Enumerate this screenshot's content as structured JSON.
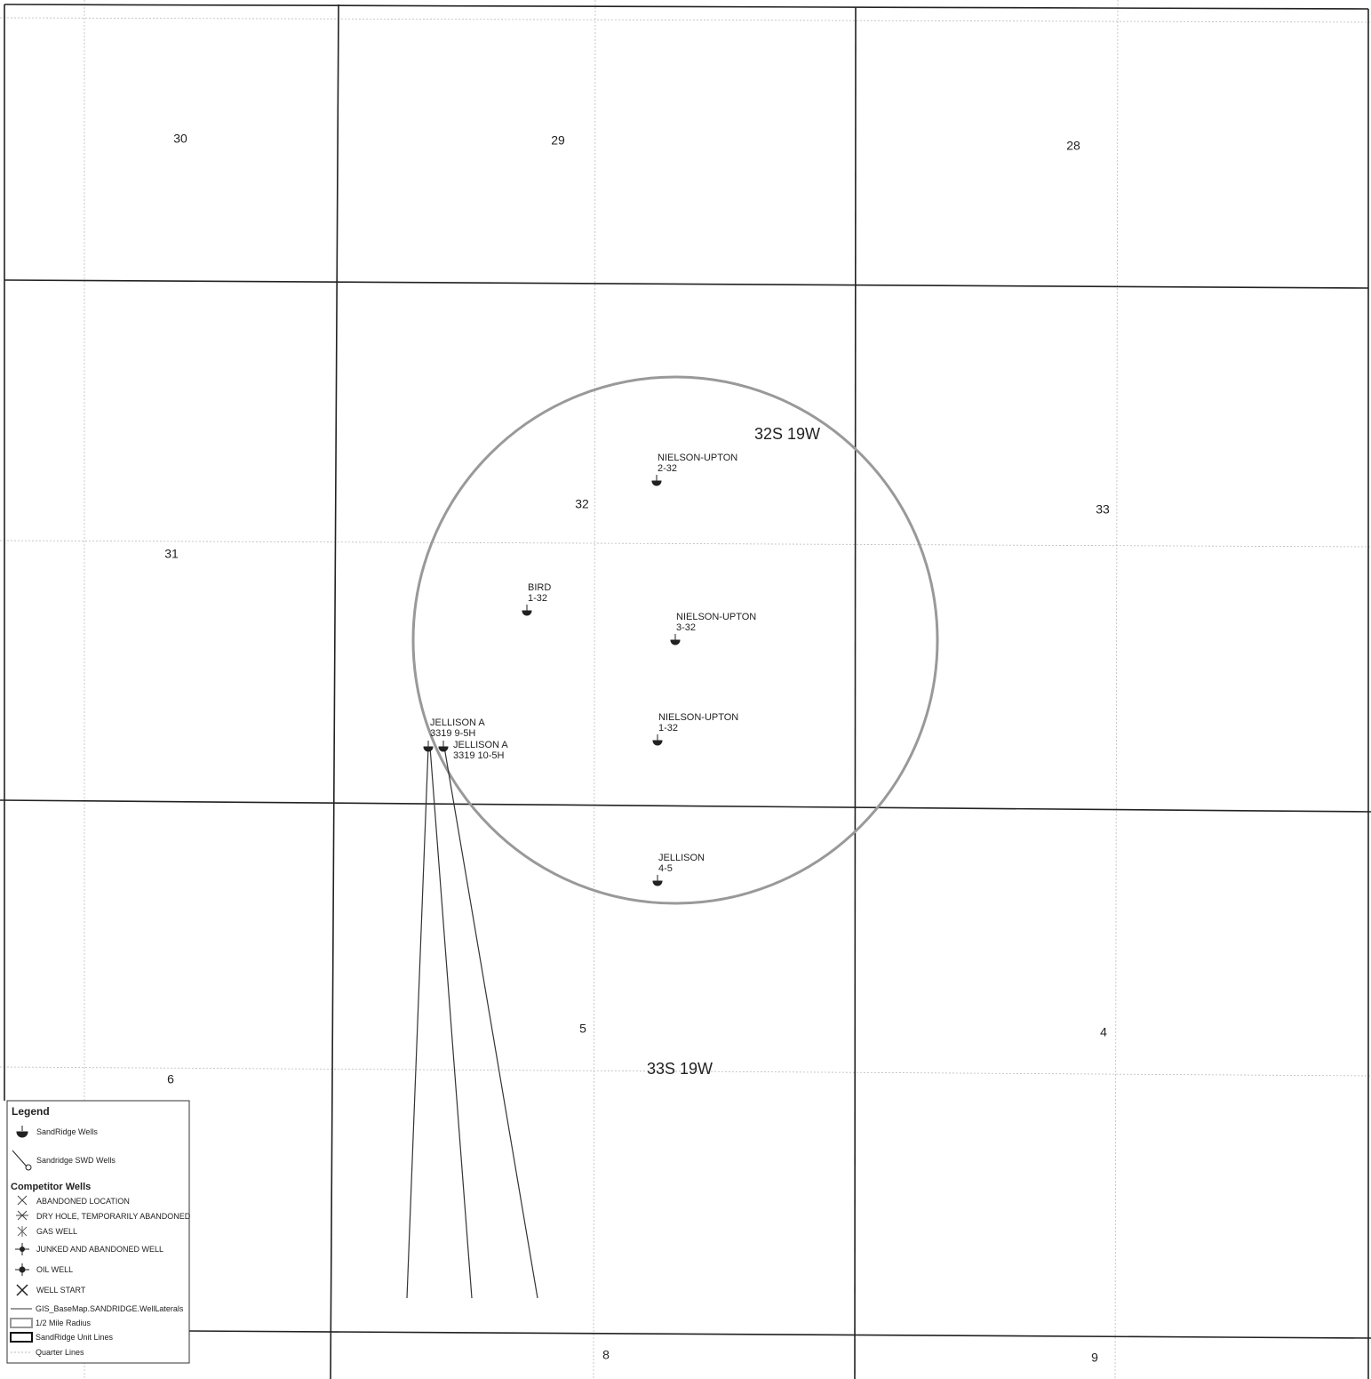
{
  "map": {
    "sections": [
      "30",
      "29",
      "28",
      "31",
      "32",
      "33",
      "6",
      "5",
      "4",
      "8",
      "9"
    ],
    "townships": [
      "32S 19W",
      "33S 19W"
    ],
    "wells": [
      {
        "name": "NIELSON-UPTON",
        "number": "2-32"
      },
      {
        "name": "BIRD",
        "number": "1-32"
      },
      {
        "name": "NIELSON-UPTON",
        "number": "3-32"
      },
      {
        "name": "NIELSON-UPTON",
        "number": "1-32"
      },
      {
        "name": "JELLISON A",
        "number": "3319 9-5H"
      },
      {
        "name": "JELLISON A",
        "number": "3319 10-5H"
      },
      {
        "name": "JELLISON",
        "number": "4-5"
      }
    ],
    "legend": {
      "title": "Legend",
      "sandridge_items": [
        "SandRidge Wells",
        "Sandridge SWD Wells"
      ],
      "competitor_title": "Competitor Wells",
      "competitor_items": [
        "ABANDONED LOCATION",
        "DRY HOLE, TEMPORARILY ABANDONED",
        "GAS WELL",
        "JUNKED AND ABANDONED WELL",
        "OIL WELL",
        "WELL START"
      ],
      "other_items": [
        "GIS_BaseMap.SANDRIDGE.WellLaterals",
        "1/2 Mile Radius",
        "SandRidge Unit Lines",
        "Quarter Lines"
      ]
    }
  }
}
